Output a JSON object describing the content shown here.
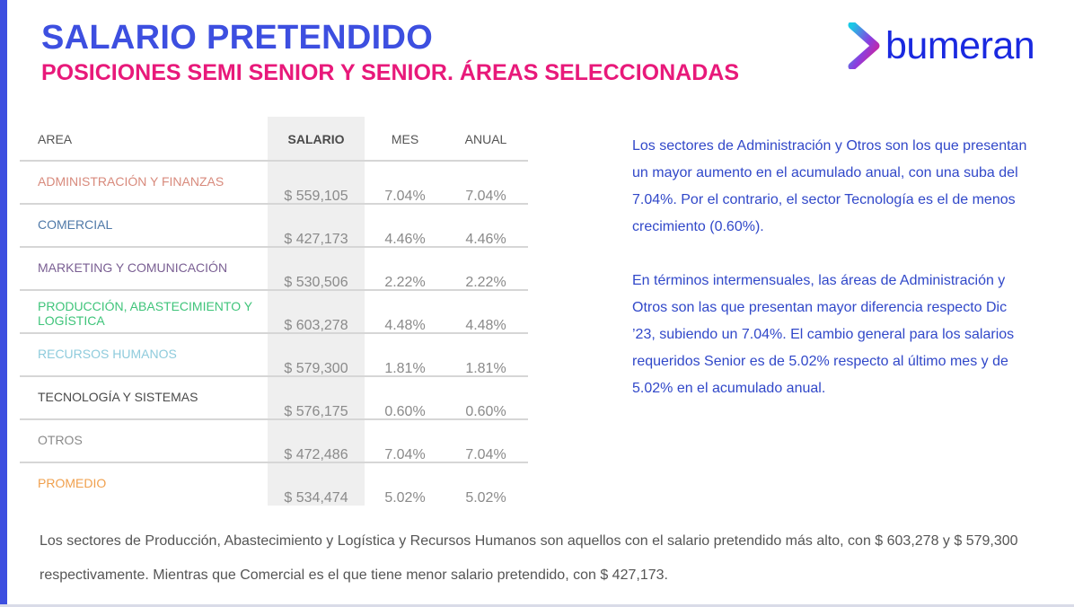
{
  "header": {
    "title": "SALARIO PRETENDIDO",
    "subtitle": "POSICIONES SEMI SENIOR Y SENIOR. ÁREAS SELECCIONADAS"
  },
  "logo": {
    "text": "bumeran",
    "icon": "bumeran-arrow-icon"
  },
  "table": {
    "headers": {
      "area": "AREA",
      "salario": "SALARIO",
      "mes": "MES",
      "anual": "ANUAL"
    },
    "rows": [
      {
        "area": "ADMINISTRACIÓN Y FINANZAS",
        "salario": "$ 559,105",
        "mes": "7.04%",
        "anual": "7.04%"
      },
      {
        "area": "COMERCIAL",
        "salario": "$ 427,173",
        "mes": "4.46%",
        "anual": "4.46%"
      },
      {
        "area": "MARKETING Y COMUNICACIÓN",
        "salario": "$ 530,506",
        "mes": "2.22%",
        "anual": "2.22%"
      },
      {
        "area": "PRODUCCIÓN, ABASTECIMIENTO Y LOGÍSTICA",
        "salario": "$ 603,278",
        "mes": "4.48%",
        "anual": "4.48%"
      },
      {
        "area": "RECURSOS HUMANOS",
        "salario": "$ 579,300",
        "mes": "1.81%",
        "anual": "1.81%"
      },
      {
        "area": "TECNOLOGÍA Y SISTEMAS",
        "salario": "$ 576,175",
        "mes": "0.60%",
        "anual": "0.60%"
      },
      {
        "area": "OTROS",
        "salario": "$ 472,486",
        "mes": "7.04%",
        "anual": "7.04%"
      },
      {
        "area": "PROMEDIO",
        "salario": "$ 534,474",
        "mes": "5.02%",
        "anual": "5.02%"
      }
    ]
  },
  "side_text": {
    "paragraph1": "Los sectores de Administración y Otros son los que presentan un mayor aumento en el acumulado anual, con una suba del 7.04%. Por el contrario, el sector Tecnología es el de menos crecimiento (0.60%).",
    "paragraph2": "En términos intermensuales, las áreas de Administración y Otros son las que presentan mayor diferencia respecto Dic ’23, subiendo un 7.04%. El cambio general para los salarios requeridos Senior es de 5.02% respecto al último mes y de 5.02% en el acumulado anual."
  },
  "footer_text": "Los sectores de Producción, Abastecimiento y Logística y Recursos Humanos son aquellos con el salario pretendido más alto, con $ 603,278 y $ 579,300 respectivamente. Mientras que Comercial es el que tiene menor salario pretendido, con $ 427,173.",
  "colors": {
    "title": "#3d4fe0",
    "subtitle": "#e8197a",
    "side_text": "#3148c9",
    "logo_text": "#1a29e0"
  }
}
